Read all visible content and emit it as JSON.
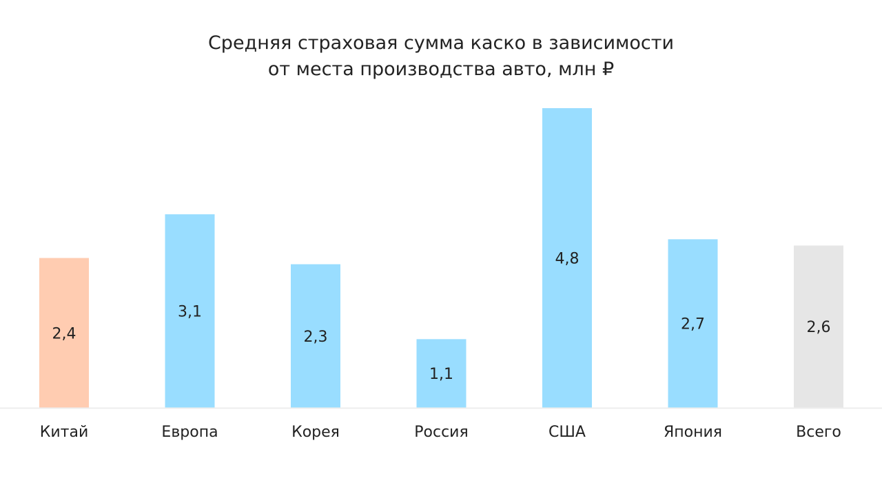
{
  "chart_data": {
    "type": "bar",
    "title": [
      "Средняя страховая сумма каско в зависимости",
      "от места производства авто, млн ₽"
    ],
    "xlabel": "",
    "ylabel": "",
    "ylim": [
      0,
      4.8
    ],
    "grid": false,
    "categories": [
      "Китай",
      "Европа",
      "Корея",
      "Россия",
      "США",
      "Япония",
      "Всего"
    ],
    "values": [
      2.4,
      3.1,
      2.3,
      1.1,
      4.8,
      2.7,
      2.6
    ],
    "value_labels": [
      "2,4",
      "3,1",
      "2,3",
      "1,1",
      "4,8",
      "2,7",
      "2,6"
    ],
    "colors": [
      "#FFCCB1",
      "#99DDFF",
      "#99DDFF",
      "#99DDFF",
      "#99DDFF",
      "#99DDFF",
      "#E6E6E6"
    ]
  }
}
